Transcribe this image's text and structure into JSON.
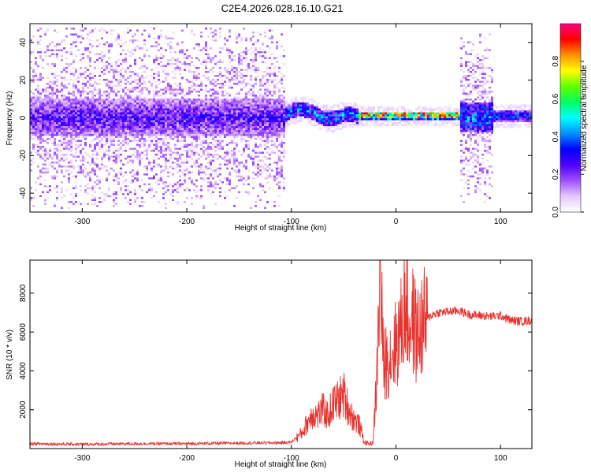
{
  "title": "C2E4.2026.028.16.10.G21",
  "colors": {
    "snr_line": "#e8332f",
    "frame": "#000000",
    "colormap": [
      "#ffffff",
      "#e6c8ff",
      "#a050ff",
      "#5000ff",
      "#0000ff",
      "#0090ff",
      "#00ffff",
      "#00ff60",
      "#60ff00",
      "#ffff00",
      "#ff9000",
      "#ff0000",
      "#ff0080"
    ]
  },
  "chart_data": [
    {
      "type": "heatmap",
      "xlabel": "Height of straight line (km)",
      "ylabel": "Frequency (Hz)",
      "xlim": [
        -350,
        130
      ],
      "ylim": [
        -50,
        50
      ],
      "xticks": [
        -300,
        -200,
        -100,
        0,
        100
      ],
      "xtick_labels": [
        "-300",
        "-200",
        "-100",
        "0",
        "100"
      ],
      "yticks": [
        -40,
        -20,
        0,
        20,
        40
      ],
      "ytick_labels": [
        "-40",
        "-20",
        "0",
        "20",
        "40"
      ],
      "colorbar": {
        "label": "Normalized spectral amplitude",
        "range": [
          0,
          1
        ],
        "ticks": [
          0.0,
          0.2,
          0.4,
          0.6,
          0.8
        ],
        "tick_labels": [
          "0.0",
          "0.2",
          "0.4",
          "0.6",
          "0.8"
        ]
      },
      "regions": [
        {
          "x_from": -350,
          "x_to": -105,
          "description": "broad noise",
          "center_hz": 0,
          "core_halfwidth_hz": 10,
          "spread_hz": 48,
          "peak_amplitude": 0.35
        },
        {
          "x_from": -105,
          "x_to": -35,
          "description": "wavy signal",
          "center_hz": 2,
          "core_halfwidth_hz": 4,
          "peak_amplitude": 0.55
        },
        {
          "x_from": -35,
          "x_to": 62,
          "description": "stable tone",
          "center_hz": 1,
          "core_halfwidth_hz": 2,
          "peak_amplitude": 0.95
        },
        {
          "x_from": 62,
          "x_to": 92,
          "description": "noisy segment",
          "center_hz": 0,
          "core_halfwidth_hz": 8,
          "spread_hz": 45,
          "peak_amplitude": 0.6
        },
        {
          "x_from": 92,
          "x_to": 130,
          "description": "stable tone",
          "center_hz": 1,
          "core_halfwidth_hz": 3,
          "peak_amplitude": 0.45
        }
      ]
    },
    {
      "type": "line",
      "xlabel": "Height of straight line (km)",
      "ylabel": "SNR (10 * v/v)",
      "xlim": [
        -350,
        130
      ],
      "ylim": [
        0,
        9700
      ],
      "xticks": [
        -300,
        -200,
        -100,
        0,
        100
      ],
      "xtick_labels": [
        "-300",
        "-200",
        "-100",
        "0",
        "100"
      ],
      "yticks": [
        2000,
        4000,
        6000,
        8000
      ],
      "ytick_labels": [
        "2000",
        "4000",
        "6000",
        "8000"
      ],
      "series": [
        {
          "name": "SNR",
          "x": [
            -350,
            -300,
            -250,
            -200,
            -150,
            -110,
            -100,
            -90,
            -85,
            -80,
            -75,
            -70,
            -65,
            -60,
            -55,
            -50,
            -45,
            -40,
            -35,
            -30,
            -25,
            -22,
            -20,
            -18,
            -16,
            -15,
            -12,
            -10,
            -5,
            0,
            5,
            8,
            10,
            12,
            15,
            20,
            25,
            30,
            35,
            40,
            50,
            60,
            70,
            80,
            90,
            100,
            110,
            120,
            130
          ],
          "y": [
            250,
            220,
            250,
            250,
            280,
            300,
            330,
            800,
            1300,
            1800,
            1700,
            2000,
            1700,
            2300,
            2500,
            2800,
            2000,
            1500,
            1200,
            300,
            250,
            300,
            2000,
            4000,
            8000,
            9600,
            4200,
            4500,
            4800,
            5400,
            6200,
            7400,
            7800,
            6200,
            6800,
            5800,
            6300,
            6700,
            6900,
            7000,
            7050,
            7100,
            6900,
            6850,
            6800,
            6850,
            6600,
            6550,
            6600
          ]
        }
      ]
    }
  ]
}
